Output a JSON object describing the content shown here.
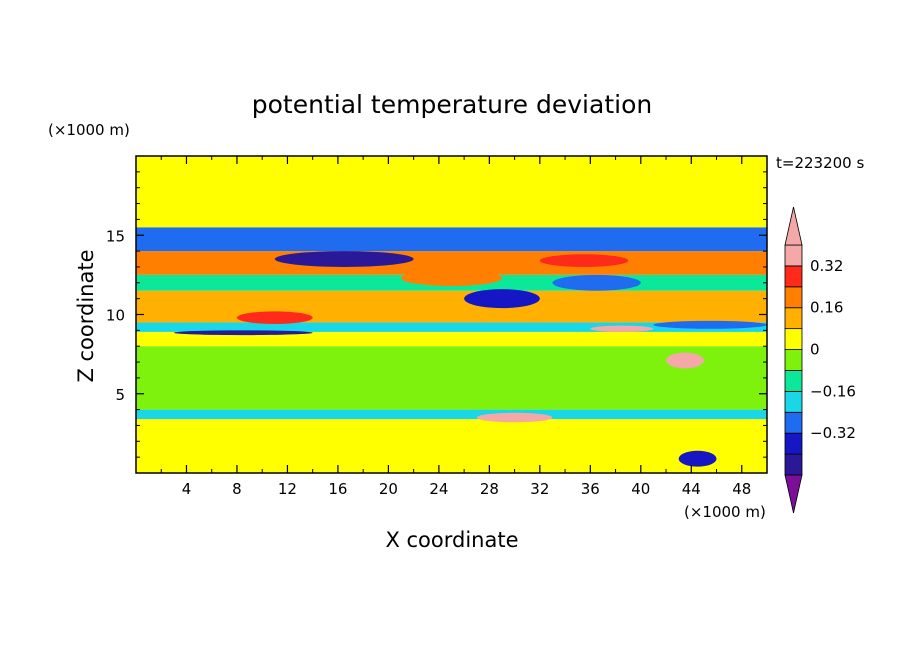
{
  "chart_data": {
    "type": "heatmap",
    "title": "potential temperature deviation",
    "xlabel": "X coordinate",
    "ylabel": "Z coordinate",
    "x_unit": "(×1000 m)",
    "y_unit": "(×1000 m)",
    "time_label": "t=223200 s",
    "xlim": [
      0,
      50
    ],
    "ylim": [
      0,
      20
    ],
    "x_ticks": [
      4,
      8,
      12,
      16,
      20,
      24,
      28,
      32,
      36,
      40,
      44,
      48
    ],
    "y_ticks": [
      5,
      10,
      15
    ],
    "colorbar": {
      "levels": [
        -0.48,
        -0.4,
        -0.32,
        -0.24,
        -0.16,
        -0.08,
        0,
        0.08,
        0.16,
        0.24,
        0.32,
        0.4
      ],
      "tick_values": [
        -0.32,
        -0.16,
        0,
        0.16,
        0.32
      ],
      "tick_labels": [
        "−0.32",
        "−0.16",
        "0",
        "0.16",
        "0.32"
      ],
      "colors": [
        "#7b0f9a",
        "#2a1896",
        "#1616c4",
        "#1f6cf0",
        "#19d7e6",
        "#0ce89a",
        "#7ef10c",
        "#ffff00",
        "#ffb000",
        "#ff8000",
        "#ff2a1a",
        "#f4a8a8"
      ]
    },
    "bands": [
      {
        "z": [
          0,
          3.4
        ],
        "value": 0.02
      },
      {
        "z": [
          3.4,
          4.0
        ],
        "value": -0.18
      },
      {
        "z": [
          4.0,
          8.0
        ],
        "value": -0.02
      },
      {
        "z": [
          8.0,
          8.9
        ],
        "value": 0.06
      },
      {
        "z": [
          8.9,
          9.5
        ],
        "value": -0.22
      },
      {
        "z": [
          9.5,
          11.5
        ],
        "value": 0.14
      },
      {
        "z": [
          11.5,
          12.5
        ],
        "value": -0.12
      },
      {
        "z": [
          12.5,
          14.0
        ],
        "value": 0.2
      },
      {
        "z": [
          14.0,
          15.5
        ],
        "value": -0.24
      },
      {
        "z": [
          15.5,
          16.5
        ],
        "value": 0.04
      },
      {
        "z": [
          16.5,
          20.0
        ],
        "value": 0.02
      }
    ],
    "features": [
      {
        "x": [
          2,
          7
        ],
        "z": [
          14.6,
          15.3
        ],
        "value": -0.3
      },
      {
        "x": [
          11,
          22
        ],
        "z": [
          13.0,
          14.0
        ],
        "value": -0.4
      },
      {
        "x": [
          26,
          32
        ],
        "z": [
          10.4,
          11.6
        ],
        "value": -0.38
      },
      {
        "x": [
          33,
          40
        ],
        "z": [
          11.5,
          12.5
        ],
        "value": -0.3
      },
      {
        "x": [
          21,
          29
        ],
        "z": [
          11.8,
          12.8
        ],
        "value": 0.24
      },
      {
        "x": [
          32,
          39
        ],
        "z": [
          13.0,
          13.8
        ],
        "value": 0.26
      },
      {
        "x": [
          36,
          41
        ],
        "z": [
          8.9,
          9.3
        ],
        "value": 0.42
      },
      {
        "x": [
          41,
          50
        ],
        "z": [
          9.1,
          9.6
        ],
        "value": -0.3
      },
      {
        "x": [
          3,
          14
        ],
        "z": [
          8.7,
          9.0
        ],
        "value": -0.4
      },
      {
        "x": [
          8,
          14
        ],
        "z": [
          9.4,
          10.2
        ],
        "value": 0.3
      },
      {
        "x": [
          27,
          33
        ],
        "z": [
          3.2,
          3.8
        ],
        "value": 0.42
      },
      {
        "x": [
          43,
          46
        ],
        "z": [
          0.4,
          1.4
        ],
        "value": -0.32
      },
      {
        "x": [
          42,
          45
        ],
        "z": [
          6.6,
          7.6
        ],
        "value": 0.34
      }
    ]
  }
}
